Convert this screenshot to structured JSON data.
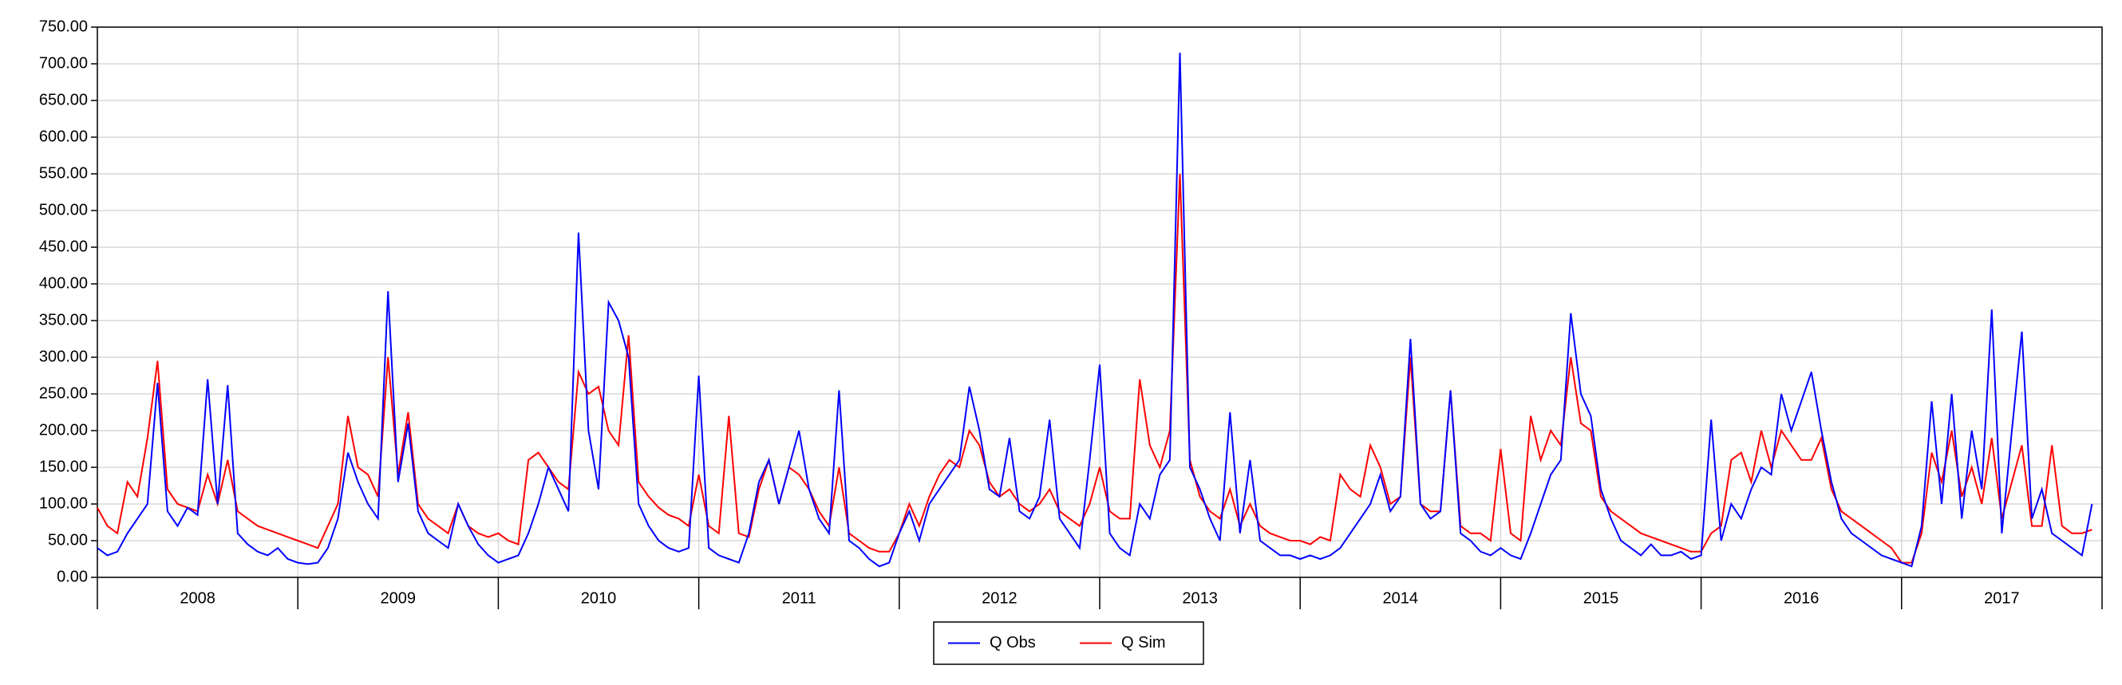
{
  "chart_data": {
    "type": "line",
    "x": [
      2008,
      2008.05,
      2008.1,
      2008.15,
      2008.2,
      2008.25,
      2008.3,
      2008.35,
      2008.4,
      2008.45,
      2008.5,
      2008.55,
      2008.6,
      2008.65,
      2008.7,
      2008.75,
      2008.8,
      2008.85,
      2008.9,
      2008.95,
      2009,
      2009.05,
      2009.1,
      2009.15,
      2009.2,
      2009.25,
      2009.3,
      2009.35,
      2009.4,
      2009.45,
      2009.5,
      2009.55,
      2009.6,
      2009.65,
      2009.7,
      2009.75,
      2009.8,
      2009.85,
      2009.9,
      2009.95,
      2010,
      2010.05,
      2010.1,
      2010.15,
      2010.2,
      2010.25,
      2010.3,
      2010.35,
      2010.4,
      2010.45,
      2010.5,
      2010.55,
      2010.6,
      2010.65,
      2010.7,
      2010.75,
      2010.8,
      2010.85,
      2010.9,
      2010.95,
      2011,
      2011.05,
      2011.1,
      2011.15,
      2011.2,
      2011.25,
      2011.3,
      2011.35,
      2011.4,
      2011.45,
      2011.5,
      2011.55,
      2011.6,
      2011.65,
      2011.7,
      2011.75,
      2011.8,
      2011.85,
      2011.9,
      2011.95,
      2012,
      2012.05,
      2012.1,
      2012.15,
      2012.2,
      2012.25,
      2012.3,
      2012.35,
      2012.4,
      2012.45,
      2012.5,
      2012.55,
      2012.6,
      2012.65,
      2012.7,
      2012.75,
      2012.8,
      2012.85,
      2012.9,
      2012.95,
      2013,
      2013.05,
      2013.1,
      2013.15,
      2013.2,
      2013.25,
      2013.3,
      2013.35,
      2013.4,
      2013.45,
      2013.5,
      2013.55,
      2013.6,
      2013.65,
      2013.7,
      2013.75,
      2013.8,
      2013.85,
      2013.9,
      2013.95,
      2014,
      2014.05,
      2014.1,
      2014.15,
      2014.2,
      2014.25,
      2014.3,
      2014.35,
      2014.4,
      2014.45,
      2014.5,
      2014.55,
      2014.6,
      2014.65,
      2014.7,
      2014.75,
      2014.8,
      2014.85,
      2014.9,
      2014.95,
      2015,
      2015.05,
      2015.1,
      2015.15,
      2015.2,
      2015.25,
      2015.3,
      2015.35,
      2015.4,
      2015.45,
      2015.5,
      2015.55,
      2015.6,
      2015.65,
      2015.7,
      2015.75,
      2015.8,
      2015.85,
      2015.9,
      2015.95,
      2016,
      2016.05,
      2016.1,
      2016.15,
      2016.2,
      2016.25,
      2016.3,
      2016.35,
      2016.4,
      2016.45,
      2016.5,
      2016.55,
      2016.6,
      2016.65,
      2016.7,
      2016.75,
      2016.8,
      2016.85,
      2016.9,
      2016.95,
      2017,
      2017.05,
      2017.1,
      2017.15,
      2017.2,
      2017.25,
      2017.3,
      2017.35,
      2017.4,
      2017.45,
      2017.5,
      2017.55,
      2017.6,
      2017.65,
      2017.7,
      2017.75,
      2017.8,
      2017.85,
      2017.9,
      2017.95
    ],
    "series": [
      {
        "name": "Q Obs",
        "color": "#0000ff",
        "values": [
          40,
          30,
          35,
          60,
          80,
          100,
          265,
          90,
          70,
          95,
          85,
          270,
          100,
          262,
          60,
          45,
          35,
          30,
          40,
          25,
          20,
          18,
          20,
          40,
          80,
          170,
          130,
          100,
          80,
          390,
          130,
          210,
          90,
          60,
          50,
          40,
          100,
          70,
          45,
          30,
          20,
          25,
          30,
          60,
          100,
          150,
          120,
          90,
          470,
          200,
          120,
          375,
          350,
          300,
          100,
          70,
          50,
          40,
          35,
          40,
          275,
          40,
          30,
          25,
          20,
          60,
          130,
          160,
          100,
          150,
          200,
          120,
          80,
          60,
          255,
          50,
          40,
          25,
          15,
          20,
          60,
          90,
          50,
          100,
          120,
          140,
          160,
          260,
          200,
          120,
          110,
          190,
          90,
          80,
          110,
          215,
          80,
          60,
          40,
          160,
          290,
          60,
          40,
          30,
          100,
          80,
          140,
          160,
          715,
          150,
          120,
          80,
          50,
          225,
          60,
          160,
          50,
          40,
          30,
          30,
          25,
          30,
          25,
          30,
          40,
          60,
          80,
          100,
          140,
          90,
          110,
          325,
          100,
          80,
          90,
          255,
          60,
          50,
          35,
          30,
          40,
          30,
          25,
          60,
          100,
          140,
          160,
          360,
          250,
          220,
          120,
          80,
          50,
          40,
          30,
          45,
          30,
          30,
          35,
          25,
          30,
          215,
          50,
          100,
          80,
          120,
          150,
          140,
          250,
          200,
          240,
          280,
          200,
          130,
          80,
          60,
          50,
          40,
          30,
          25,
          20,
          15,
          70,
          240,
          100,
          250,
          80,
          200,
          120,
          365,
          60,
          200,
          335,
          80,
          120,
          60,
          50,
          40,
          30,
          100
        ]
      },
      {
        "name": "Q Sim",
        "color": "#ff0000",
        "values": [
          95,
          70,
          60,
          130,
          110,
          190,
          295,
          120,
          100,
          95,
          90,
          140,
          100,
          160,
          90,
          80,
          70,
          65,
          60,
          55,
          50,
          45,
          40,
          70,
          100,
          220,
          150,
          140,
          110,
          300,
          140,
          225,
          100,
          80,
          70,
          60,
          100,
          70,
          60,
          55,
          60,
          50,
          45,
          160,
          170,
          150,
          130,
          120,
          280,
          250,
          260,
          200,
          180,
          330,
          130,
          110,
          95,
          85,
          80,
          70,
          140,
          70,
          60,
          220,
          60,
          55,
          120,
          160,
          100,
          150,
          140,
          120,
          90,
          70,
          150,
          60,
          50,
          40,
          35,
          35,
          60,
          100,
          70,
          110,
          140,
          160,
          150,
          200,
          180,
          130,
          110,
          120,
          100,
          90,
          100,
          120,
          90,
          80,
          70,
          100,
          150,
          90,
          80,
          80,
          270,
          180,
          150,
          200,
          550,
          160,
          110,
          90,
          80,
          120,
          70,
          100,
          70,
          60,
          55,
          50,
          50,
          45,
          55,
          50,
          140,
          120,
          110,
          180,
          150,
          100,
          110,
          300,
          100,
          90,
          90,
          255,
          70,
          60,
          60,
          50,
          175,
          60,
          50,
          220,
          160,
          200,
          180,
          300,
          210,
          200,
          110,
          90,
          80,
          70,
          60,
          55,
          50,
          45,
          40,
          35,
          35,
          60,
          70,
          160,
          170,
          130,
          200,
          150,
          200,
          180,
          160,
          160,
          190,
          120,
          90,
          80,
          70,
          60,
          50,
          40,
          20,
          20,
          60,
          170,
          130,
          200,
          110,
          150,
          100,
          190,
          80,
          130,
          180,
          70,
          70,
          180,
          70,
          60,
          60,
          65
        ]
      }
    ],
    "xlim": [
      2008,
      2018
    ],
    "xticks": [
      {
        "value": 2008.5,
        "label": "2008"
      },
      {
        "value": 2009.5,
        "label": "2009"
      },
      {
        "value": 2010.5,
        "label": "2010"
      },
      {
        "value": 2011.5,
        "label": "2011"
      },
      {
        "value": 2012.5,
        "label": "2012"
      },
      {
        "value": 2013.5,
        "label": "2013"
      },
      {
        "value": 2014.5,
        "label": "2014"
      },
      {
        "value": 2015.5,
        "label": "2015"
      },
      {
        "value": 2016.5,
        "label": "2016"
      },
      {
        "value": 2017.5,
        "label": "2017"
      }
    ],
    "ylim": [
      0,
      750
    ],
    "yticks": [
      {
        "value": 0,
        "label": "0.00"
      },
      {
        "value": 50,
        "label": "50.00"
      },
      {
        "value": 100,
        "label": "100.00"
      },
      {
        "value": 150,
        "label": "150.00"
      },
      {
        "value": 200,
        "label": "200.00"
      },
      {
        "value": 250,
        "label": "250.00"
      },
      {
        "value": 300,
        "label": "300.00"
      },
      {
        "value": 350,
        "label": "350.00"
      },
      {
        "value": 400,
        "label": "400.00"
      },
      {
        "value": 450,
        "label": "450.00"
      },
      {
        "value": 500,
        "label": "500.00"
      },
      {
        "value": 550,
        "label": "550.00"
      },
      {
        "value": 600,
        "label": "600.00"
      },
      {
        "value": 650,
        "label": "650.00"
      },
      {
        "value": 700,
        "label": "700.00"
      },
      {
        "value": 750,
        "label": "750.00"
      }
    ],
    "grid": true
  }
}
